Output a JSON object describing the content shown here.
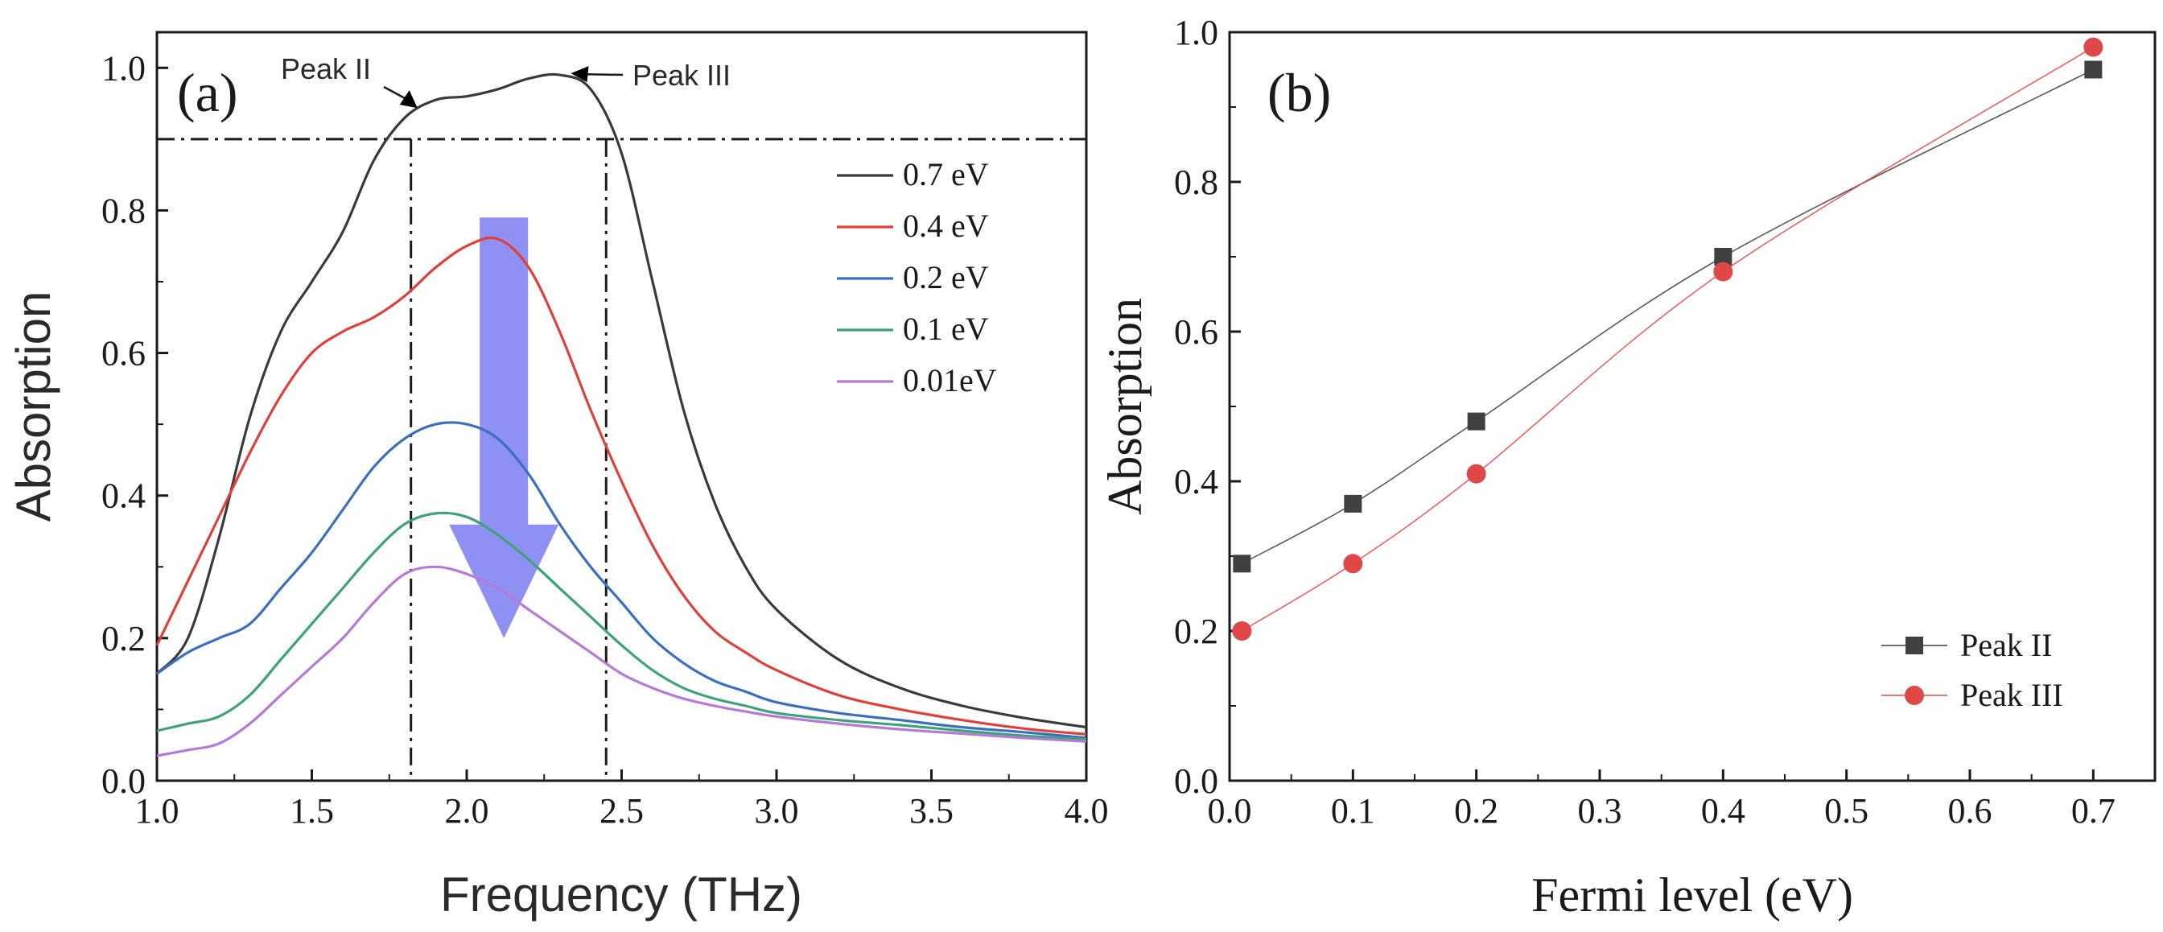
{
  "chart_data": [
    {
      "panel": "(a)",
      "type": "line",
      "title": "",
      "xlabel": "Frequency (THz)",
      "ylabel": "Absorption",
      "xlim": [
        1.0,
        4.0
      ],
      "ylim": [
        0.0,
        1.05
      ],
      "xticks": [
        "1.0",
        "1.5",
        "2.0",
        "2.5",
        "3.0",
        "3.5",
        "4.0"
      ],
      "yticks": [
        "0.0",
        "0.2",
        "0.4",
        "0.6",
        "0.8",
        "1.0"
      ],
      "x": [
        1.0,
        1.1,
        1.2,
        1.3,
        1.4,
        1.5,
        1.6,
        1.7,
        1.8,
        1.9,
        2.0,
        2.1,
        2.2,
        2.3,
        2.4,
        2.5,
        2.6,
        2.7,
        2.8,
        2.9,
        3.0,
        3.2,
        3.4,
        3.6,
        3.8,
        4.0
      ],
      "series": [
        {
          "name": "0.7 eV",
          "color": "#3a3a3a",
          "values": [
            0.15,
            0.2,
            0.34,
            0.51,
            0.63,
            0.7,
            0.77,
            0.87,
            0.93,
            0.955,
            0.96,
            0.97,
            0.985,
            0.99,
            0.97,
            0.88,
            0.7,
            0.52,
            0.39,
            0.3,
            0.24,
            0.17,
            0.13,
            0.105,
            0.088,
            0.075
          ]
        },
        {
          "name": "0.4 eV",
          "color": "#e0403a",
          "values": [
            0.19,
            0.28,
            0.37,
            0.46,
            0.54,
            0.6,
            0.63,
            0.65,
            0.68,
            0.72,
            0.75,
            0.76,
            0.72,
            0.63,
            0.52,
            0.42,
            0.33,
            0.26,
            0.21,
            0.18,
            0.155,
            0.12,
            0.1,
            0.085,
            0.073,
            0.065
          ]
        },
        {
          "name": "0.2 eV",
          "color": "#3a6fc0",
          "values": [
            0.15,
            0.18,
            0.2,
            0.22,
            0.27,
            0.32,
            0.38,
            0.44,
            0.48,
            0.5,
            0.5,
            0.48,
            0.43,
            0.36,
            0.3,
            0.25,
            0.2,
            0.165,
            0.14,
            0.125,
            0.11,
            0.095,
            0.085,
            0.075,
            0.068,
            0.06
          ]
        },
        {
          "name": "0.1 eV",
          "color": "#3fa27a",
          "values": [
            0.07,
            0.08,
            0.09,
            0.12,
            0.17,
            0.22,
            0.27,
            0.32,
            0.36,
            0.375,
            0.37,
            0.345,
            0.31,
            0.27,
            0.23,
            0.19,
            0.155,
            0.13,
            0.115,
            0.105,
            0.095,
            0.085,
            0.078,
            0.07,
            0.063,
            0.058
          ]
        },
        {
          "name": "0.01eV",
          "color": "#b57ad6",
          "values": [
            0.035,
            0.043,
            0.052,
            0.08,
            0.12,
            0.16,
            0.2,
            0.25,
            0.29,
            0.3,
            0.29,
            0.27,
            0.24,
            0.21,
            0.18,
            0.15,
            0.13,
            0.115,
            0.105,
            0.097,
            0.09,
            0.08,
            0.072,
            0.066,
            0.06,
            0.055
          ]
        }
      ],
      "reference_lines": {
        "horizontal_y": 0.9,
        "vertical_x": [
          1.82,
          2.45
        ]
      },
      "annotations": [
        {
          "text": "Peak II",
          "x": 1.82,
          "y": 0.955
        },
        {
          "text": "Peak III",
          "x": 2.3,
          "y": 0.99
        }
      ],
      "trend_arrow": {
        "from": [
          2.12,
          0.79
        ],
        "to": [
          2.12,
          0.2
        ],
        "color": "#7a7cf2"
      },
      "legend": "right-middle"
    },
    {
      "panel": "(b)",
      "type": "line",
      "title": "",
      "xlabel": "Fermi level (eV)",
      "ylabel": "Absorption",
      "xlim": [
        0.0,
        0.75
      ],
      "ylim": [
        0.0,
        1.0
      ],
      "xticks": [
        "0.0",
        "0.1",
        "0.2",
        "0.3",
        "0.4",
        "0.5",
        "0.6",
        "0.7"
      ],
      "yticks": [
        "0.0",
        "0.2",
        "0.4",
        "0.6",
        "0.8",
        "1.0"
      ],
      "series": [
        {
          "name": "Peak II",
          "color": "#404040",
          "marker": "square",
          "x": [
            0.01,
            0.1,
            0.2,
            0.4,
            0.7
          ],
          "values": [
            0.29,
            0.37,
            0.48,
            0.7,
            0.95
          ]
        },
        {
          "name": "Peak III",
          "color": "#e04848",
          "marker": "circle",
          "x": [
            0.01,
            0.1,
            0.2,
            0.4,
            0.7
          ],
          "values": [
            0.2,
            0.29,
            0.41,
            0.68,
            0.98
          ]
        }
      ],
      "legend": "bottom-right"
    }
  ]
}
